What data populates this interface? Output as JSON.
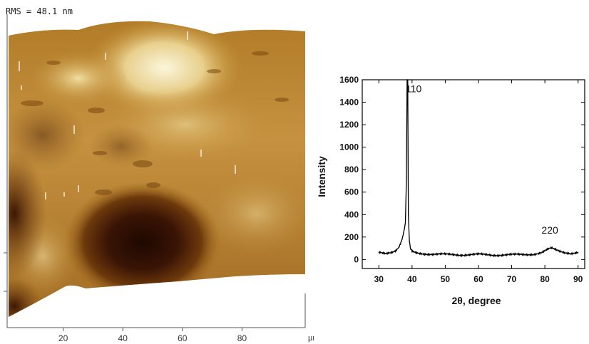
{
  "afm": {
    "rms_label": "RMS = 48.1 nm",
    "x_unit": "µm",
    "x_ticks": [
      "20",
      "40",
      "60",
      "80"
    ],
    "x_tick_values": [
      20,
      40,
      60,
      80
    ],
    "x_range": [
      0,
      100
    ],
    "colors": {
      "dark": "#2b0e03",
      "mid": "#a86d1c",
      "light": "#f6eec8"
    }
  },
  "chart_data": {
    "type": "line",
    "xlabel": "2θ, degree",
    "ylabel": "Intensity",
    "xlim": [
      25,
      92
    ],
    "ylim": [
      -80,
      1600
    ],
    "x_ticks": [
      30,
      40,
      50,
      60,
      70,
      80,
      90
    ],
    "y_ticks": [
      0,
      200,
      400,
      600,
      800,
      1000,
      1200,
      1400,
      1600
    ],
    "grid": false,
    "series": [
      {
        "color": "#000000",
        "x": [
          30,
          32,
          34,
          35,
          36,
          36.5,
          37,
          37.5,
          38,
          38.3,
          38.5,
          38.7,
          38.9,
          39.2,
          39.5,
          40,
          41,
          42,
          45,
          50,
          55,
          60,
          65,
          70,
          74,
          77,
          79,
          80,
          81,
          82,
          83,
          84,
          86,
          88,
          90
        ],
        "y": [
          60,
          55,
          70,
          80,
          110,
          140,
          180,
          240,
          330,
          700,
          1600,
          1600,
          400,
          160,
          95,
          70,
          60,
          55,
          50,
          45,
          42,
          45,
          40,
          42,
          45,
          50,
          60,
          75,
          90,
          100,
          90,
          80,
          65,
          55,
          60
        ]
      }
    ],
    "annotations": [
      {
        "text": "110",
        "x": 40.5,
        "y": 1490
      },
      {
        "text": "220",
        "x": 81.5,
        "y": 230
      }
    ]
  }
}
